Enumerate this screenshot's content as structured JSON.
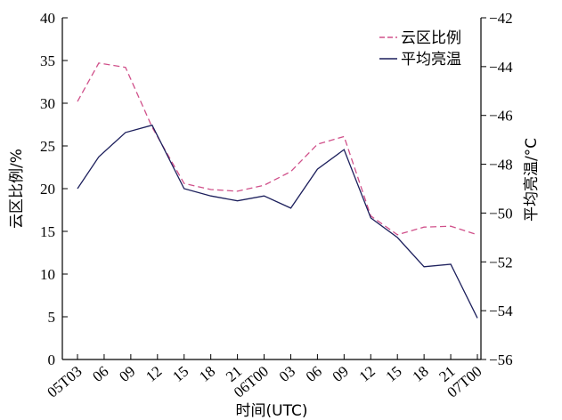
{
  "chart_data": {
    "type": "line",
    "title": "",
    "xlabel": "时间(UTC)",
    "ylabel_left": "云区比例/%",
    "ylabel_right": "平均亮温/°C",
    "x": [
      "05T03",
      "06",
      "09",
      "12",
      "15",
      "18",
      "21",
      "06T00",
      "03",
      "06",
      "09",
      "12",
      "15",
      "18",
      "21",
      "07T00"
    ],
    "x_tick_indices": [
      0,
      1,
      2,
      3,
      4,
      5,
      6,
      7,
      8,
      9,
      10,
      11,
      12,
      13,
      14,
      15
    ],
    "x_point_positions": [
      0,
      0.8,
      1.8,
      2.8,
      4,
      5,
      6,
      7,
      8,
      9,
      10,
      11,
      12,
      13,
      14,
      15
    ],
    "yleft_lim": [
      0,
      40
    ],
    "yleft_ticks": [
      0,
      5,
      10,
      15,
      20,
      25,
      30,
      35,
      40
    ],
    "yright_lim": [
      -56,
      -42
    ],
    "yright_ticks": [
      -56,
      -54,
      -52,
      -50,
      -48,
      -46,
      -44,
      -42
    ],
    "grid": false,
    "legend_position": "top-right",
    "series": [
      {
        "name": "云区比例",
        "axis": "left",
        "style": "dashed",
        "color": "#d0508a",
        "values": [
          30.2,
          34.7,
          34.2,
          27.2,
          20.6,
          19.9,
          19.7,
          20.4,
          22.0,
          25.2,
          26.1,
          16.8,
          14.6,
          15.5,
          15.6,
          14.6
        ]
      },
      {
        "name": "平均亮温",
        "axis": "right",
        "style": "solid",
        "color": "#1c1f5c",
        "values": [
          -49.0,
          -47.7,
          -46.7,
          -46.4,
          -49.0,
          -49.3,
          -49.5,
          -49.3,
          -49.8,
          -48.2,
          -47.4,
          -50.2,
          -51.0,
          -52.2,
          -52.1,
          -54.3
        ]
      }
    ]
  }
}
